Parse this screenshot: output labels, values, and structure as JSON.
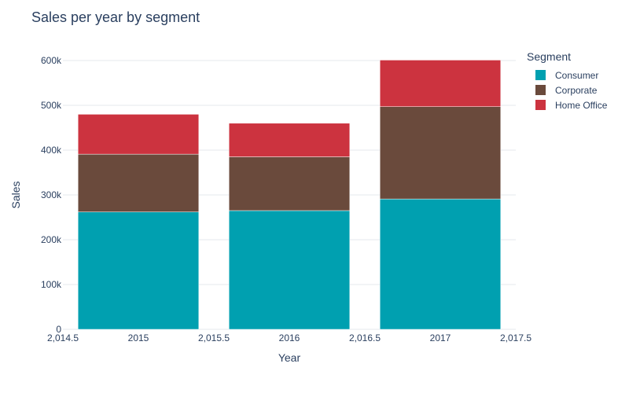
{
  "chart_data": {
    "type": "bar",
    "stacked": true,
    "title": "Sales per year by segment",
    "xlabel": "Year",
    "ylabel": "Sales",
    "x": [
      2015,
      2016,
      2017
    ],
    "x_tick_labels": [
      "2,014.5",
      "2015",
      "2,015.5",
      "2016",
      "2,016.5",
      "2017",
      "2,017.5"
    ],
    "x_tick_values": [
      2014.5,
      2015,
      2015.5,
      2016,
      2016.5,
      2017,
      2017.5
    ],
    "xlim": [
      2014.5,
      2017.5
    ],
    "ylim": [
      0,
      600000
    ],
    "y_tick_values": [
      0,
      100000,
      200000,
      300000,
      400000,
      500000,
      600000
    ],
    "y_tick_labels": [
      "0",
      "100k",
      "200k",
      "300k",
      "400k",
      "500k",
      "600k"
    ],
    "grid": true,
    "legend_title": "Segment",
    "legend_position": "top-right",
    "series": [
      {
        "name": "Consumer",
        "color": "#00a0b0",
        "values": [
          262000,
          265000,
          291000
        ]
      },
      {
        "name": "Corporate",
        "color": "#6a4a3c",
        "values": [
          129000,
          120000,
          206000
        ]
      },
      {
        "name": "Home Office",
        "color": "#cc333f",
        "values": [
          89000,
          75000,
          104000
        ]
      }
    ]
  }
}
